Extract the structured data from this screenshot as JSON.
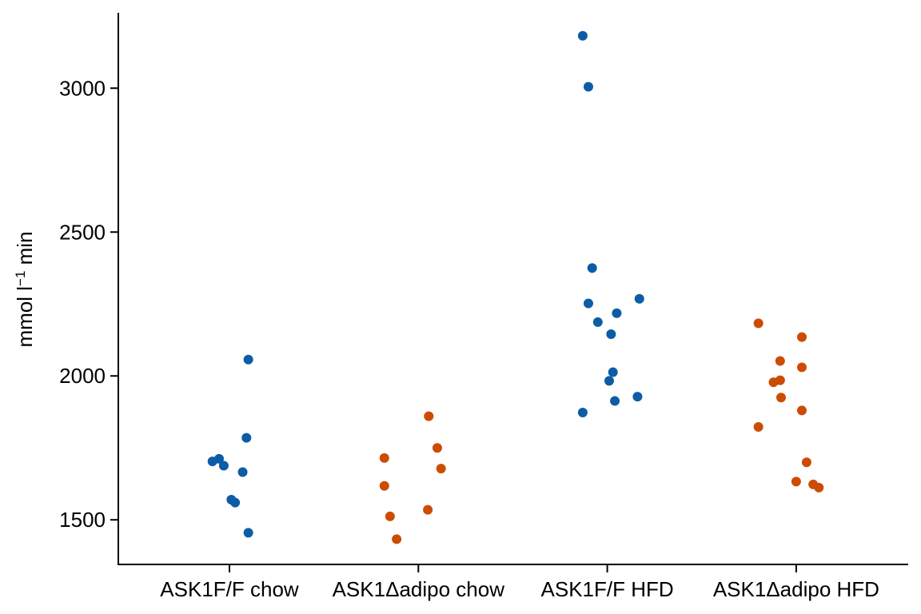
{
  "chart_data": {
    "type": "scatter",
    "title": "",
    "xlabel": "",
    "ylabel": "mmol l",
    "ylabel_superscript": "−1",
    "ylabel_suffix": " min",
    "ylim": [
      1345,
      3262
    ],
    "yticks": [
      1500,
      2000,
      2500,
      3000
    ],
    "categories": [
      "ASK1F/F chow",
      "ASK1Δadipo chow",
      "ASK1F/F HFD",
      "ASK1Δadipo HFD"
    ],
    "grid": false,
    "legend": "none",
    "colors": {
      "blue": "#0c5da5",
      "orange": "#cc4c02"
    },
    "series": [
      {
        "category": "ASK1F/F chow",
        "color": "#0c5da5",
        "points": [
          {
            "x": -0.09,
            "y": 1703
          },
          {
            "x": -0.055,
            "y": 1712
          },
          {
            "x": -0.03,
            "y": 1688
          },
          {
            "x": 0.1,
            "y": 2057
          },
          {
            "x": 0.09,
            "y": 1785
          },
          {
            "x": 0.07,
            "y": 1666
          },
          {
            "x": 0.01,
            "y": 1570
          },
          {
            "x": 0.03,
            "y": 1560
          },
          {
            "x": 0.1,
            "y": 1455
          }
        ]
      },
      {
        "category": "ASK1Δadipo chow",
        "color": "#cc4c02",
        "points": [
          {
            "x": -0.18,
            "y": 1715
          },
          {
            "x": -0.18,
            "y": 1618
          },
          {
            "x": -0.15,
            "y": 1512
          },
          {
            "x": -0.115,
            "y": 1433
          },
          {
            "x": 0.05,
            "y": 1535
          },
          {
            "x": 0.055,
            "y": 1860
          },
          {
            "x": 0.1,
            "y": 1750
          },
          {
            "x": 0.12,
            "y": 1678
          }
        ]
      },
      {
        "category": "ASK1F/F HFD",
        "color": "#0c5da5",
        "points": [
          {
            "x": -0.13,
            "y": 3182
          },
          {
            "x": -0.1,
            "y": 3005
          },
          {
            "x": -0.08,
            "y": 2375
          },
          {
            "x": -0.1,
            "y": 2252
          },
          {
            "x": -0.05,
            "y": 2187
          },
          {
            "x": 0.05,
            "y": 2218
          },
          {
            "x": 0.17,
            "y": 2268
          },
          {
            "x": 0.02,
            "y": 2145
          },
          {
            "x": 0.03,
            "y": 2013
          },
          {
            "x": 0.01,
            "y": 1983
          },
          {
            "x": 0.04,
            "y": 1913
          },
          {
            "x": 0.16,
            "y": 1928
          },
          {
            "x": -0.13,
            "y": 1873
          }
        ]
      },
      {
        "category": "ASK1Δadipo HFD",
        "color": "#cc4c02",
        "points": [
          {
            "x": -0.2,
            "y": 2183
          },
          {
            "x": 0.03,
            "y": 2135
          },
          {
            "x": -0.085,
            "y": 2052
          },
          {
            "x": 0.03,
            "y": 2030
          },
          {
            "x": -0.085,
            "y": 1985
          },
          {
            "x": -0.12,
            "y": 1978
          },
          {
            "x": -0.08,
            "y": 1925
          },
          {
            "x": 0.03,
            "y": 1880
          },
          {
            "x": -0.2,
            "y": 1823
          },
          {
            "x": 0.055,
            "y": 1700
          },
          {
            "x": 0.0,
            "y": 1633
          },
          {
            "x": 0.09,
            "y": 1623
          },
          {
            "x": 0.12,
            "y": 1612
          }
        ]
      }
    ]
  }
}
